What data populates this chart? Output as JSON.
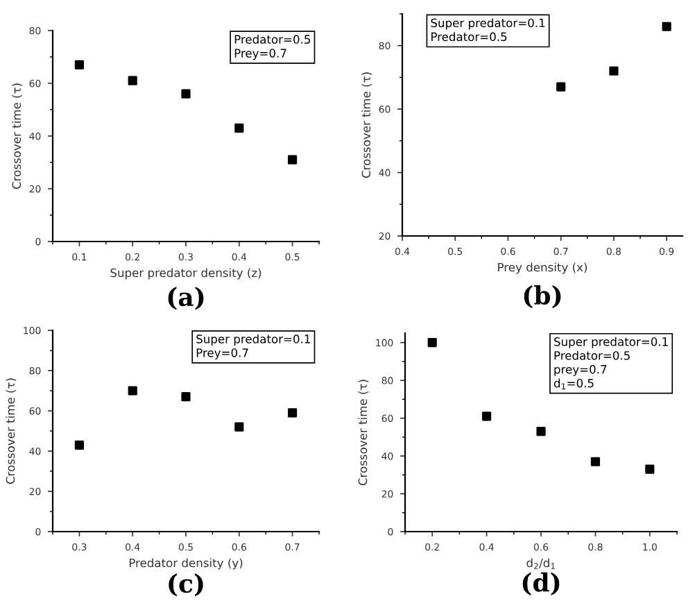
{
  "chart_data": [
    {
      "type": "scatter",
      "title": "(a)",
      "xlabel": "Super predator density (z)",
      "ylabel": "Crossover time (τ)",
      "x": [
        0.1,
        0.2,
        0.3,
        0.4,
        0.5
      ],
      "values": [
        67,
        61,
        56,
        43,
        31
      ],
      "color": "#000000",
      "marker": "square",
      "xlim": [
        0.05,
        0.55
      ],
      "xticks": [
        0.1,
        0.2,
        0.3,
        0.4,
        0.5
      ],
      "ylim": [
        0,
        80
      ],
      "yticks": [
        0,
        20,
        40,
        60,
        80
      ],
      "grid": false,
      "annotations": [
        "Predator=0.5",
        "Prey=0.7"
      ]
    },
    {
      "type": "scatter",
      "title": "(b)",
      "xlabel": "Prey density (x)",
      "ylabel": "Crossover time (τ)",
      "x": [
        0.7,
        0.8,
        0.9
      ],
      "values": [
        67,
        72,
        86
      ],
      "color": "#000000",
      "marker": "square",
      "xlim": [
        0.4,
        0.93
      ],
      "xticks": [
        0.4,
        0.5,
        0.6,
        0.7,
        0.8,
        0.9
      ],
      "ylim": [
        20,
        90
      ],
      "yticks": [
        20,
        40,
        60,
        80
      ],
      "grid": false,
      "annotations": [
        "Super predator=0.1",
        "Predator=0.5"
      ]
    },
    {
      "type": "scatter",
      "title": "(c)",
      "xlabel": "Predator density (y)",
      "ylabel": "Crossover time (τ)",
      "x": [
        0.3,
        0.4,
        0.5,
        0.6,
        0.7
      ],
      "values": [
        43,
        70,
        67,
        52,
        59
      ],
      "color": "#000000",
      "marker": "square",
      "xlim": [
        0.25,
        0.75
      ],
      "xticks": [
        0.3,
        0.4,
        0.5,
        0.6,
        0.7
      ],
      "ylim": [
        0,
        100
      ],
      "yticks": [
        0,
        20,
        40,
        60,
        80,
        100
      ],
      "grid": false,
      "annotations": [
        "Super predator=0.1",
        "Prey=0.7"
      ]
    },
    {
      "type": "scatter",
      "title": "(d)",
      "xlabel": "d$_{2}$/d$_{1}$",
      "ylabel": "Crossover time (τ)",
      "x": [
        0.2,
        0.4,
        0.6,
        0.8,
        1.0
      ],
      "values": [
        100,
        61,
        53,
        37,
        33
      ],
      "color": "#000000",
      "marker": "square",
      "xlim": [
        0.1,
        1.1
      ],
      "xticks": [
        0.2,
        0.4,
        0.6,
        0.8,
        {
          "value": 1.0,
          "label": "1.0"
        }
      ],
      "ylim": [
        0,
        105
      ],
      "yticks": [
        0,
        20,
        40,
        60,
        80,
        100
      ],
      "grid": false,
      "annotations": [
        "Super predator=0.1",
        "Predator=0.5",
        "prey=0.7",
        "d$_{1}$=0.5"
      ]
    }
  ]
}
